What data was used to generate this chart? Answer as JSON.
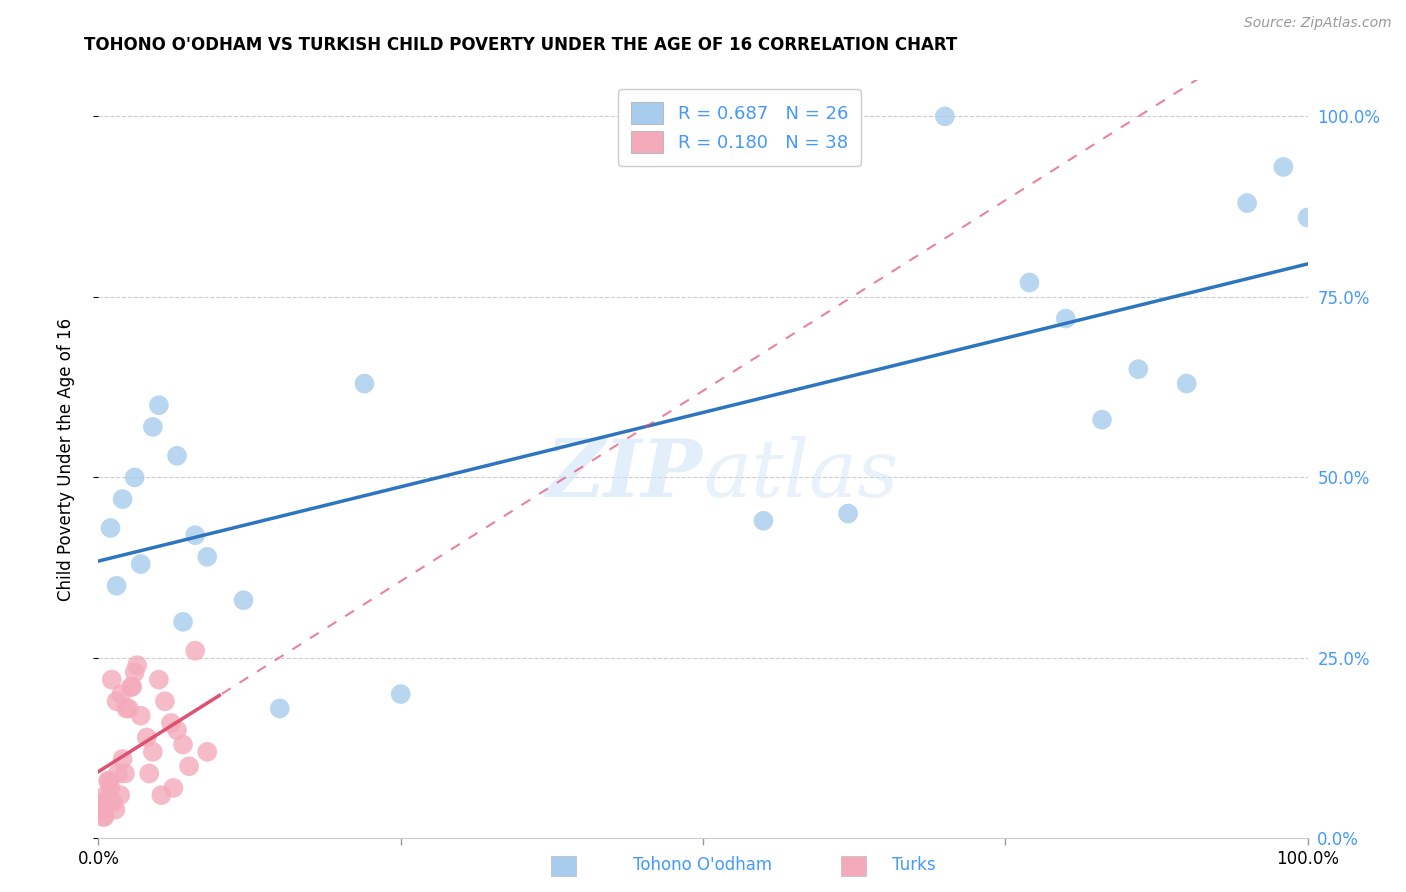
{
  "title": "TOHONO O'ODHAM VS TURKISH CHILD POVERTY UNDER THE AGE OF 16 CORRELATION CHART",
  "source": "Source: ZipAtlas.com",
  "ylabel": "Child Poverty Under the Age of 16",
  "ytick_values": [
    0,
    25,
    50,
    75,
    100
  ],
  "xlim": [
    0,
    100
  ],
  "ylim": [
    0,
    105
  ],
  "R_blue": 0.687,
  "N_blue": 26,
  "R_pink": 0.18,
  "N_pink": 38,
  "blue_color": "#A8CCEE",
  "pink_color": "#F4AABB",
  "blue_line_color": "#2E75BF",
  "pink_line_color": "#E05070",
  "watermark": "ZIPatlas",
  "blue_x": [
    1.0,
    2.0,
    3.0,
    4.5,
    5.0,
    6.5,
    8.0,
    9.0,
    12.0,
    15.0,
    22.0,
    55.0,
    62.0,
    70.0,
    77.0,
    80.0,
    83.0,
    86.0,
    90.0,
    95.0,
    98.0,
    100.0,
    1.5,
    3.5,
    7.0,
    25.0
  ],
  "blue_y": [
    43.0,
    47.0,
    50.0,
    57.0,
    60.0,
    53.0,
    42.0,
    39.0,
    33.0,
    18.0,
    63.0,
    44.0,
    45.0,
    100.0,
    77.0,
    72.0,
    58.0,
    65.0,
    63.0,
    88.0,
    93.0,
    86.0,
    35.0,
    38.0,
    30.0,
    20.0
  ],
  "pink_x": [
    0.2,
    0.5,
    0.8,
    1.0,
    1.2,
    1.4,
    1.6,
    1.8,
    2.0,
    2.2,
    2.5,
    2.8,
    3.0,
    3.5,
    4.0,
    4.5,
    5.0,
    5.5,
    6.0,
    6.5,
    7.0,
    7.5,
    8.0,
    0.3,
    0.6,
    0.9,
    1.1,
    1.5,
    1.9,
    2.3,
    3.2,
    4.2,
    5.2,
    6.2,
    0.4,
    0.7,
    2.7,
    9.0
  ],
  "pink_y": [
    5.0,
    3.0,
    8.0,
    7.0,
    5.0,
    4.0,
    9.0,
    6.0,
    11.0,
    9.0,
    18.0,
    21.0,
    23.0,
    17.0,
    14.0,
    12.0,
    22.0,
    19.0,
    16.0,
    15.0,
    13.0,
    10.0,
    26.0,
    4.0,
    6.0,
    8.0,
    22.0,
    19.0,
    20.0,
    18.0,
    24.0,
    9.0,
    6.0,
    7.0,
    3.0,
    5.0,
    21.0,
    12.0
  ]
}
